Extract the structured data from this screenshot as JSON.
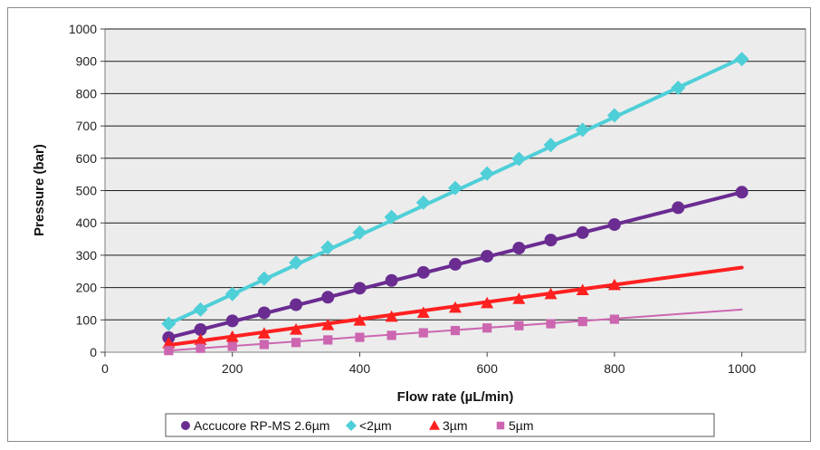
{
  "chart_data": {
    "type": "line",
    "title": "",
    "xlabel": "Flow rate (µL/min)",
    "ylabel": "Pressure (bar)",
    "xlim": [
      0,
      1100
    ],
    "ylim": [
      0,
      1000
    ],
    "xticks": [
      0,
      200,
      400,
      600,
      800,
      1000
    ],
    "yticks": [
      0,
      100,
      200,
      300,
      400,
      500,
      600,
      700,
      800,
      900,
      1000
    ],
    "grid": "horizontal",
    "plot_background": "#ececec",
    "legend_position": "bottom",
    "series": [
      {
        "name": "Accucore RP-MS 2.6µm",
        "color": "#6a2c91",
        "marker": "circle",
        "line_width": 4,
        "x": [
          100,
          150,
          200,
          250,
          300,
          350,
          400,
          450,
          500,
          550,
          600,
          650,
          700,
          750,
          800,
          900,
          1000
        ],
        "y": [
          45,
          70,
          97,
          122,
          147,
          170,
          198,
          222,
          247,
          272,
          297,
          322,
          347,
          370,
          395,
          447,
          495
        ],
        "fit_line": [
          [
            100,
            45
          ],
          [
            1000,
            495
          ]
        ]
      },
      {
        "name": "<2µm",
        "color": "#4fcfd8",
        "marker": "diamond",
        "line_width": 4,
        "x": [
          100,
          150,
          200,
          250,
          300,
          350,
          400,
          450,
          500,
          550,
          600,
          650,
          700,
          750,
          800,
          900,
          1000
        ],
        "y": [
          88,
          132,
          180,
          228,
          277,
          324,
          370,
          418,
          463,
          508,
          553,
          598,
          641,
          688,
          733,
          818,
          907
        ],
        "fit_line": [
          [
            100,
            88
          ],
          [
            1000,
            910
          ]
        ]
      },
      {
        "name": "3µm",
        "color": "#ff2020",
        "marker": "triangle",
        "line_width": 4,
        "x": [
          100,
          150,
          200,
          250,
          300,
          350,
          400,
          450,
          500,
          550,
          600,
          650,
          700,
          750,
          800
        ],
        "y": [
          28,
          38,
          48,
          58,
          70,
          84,
          98,
          110,
          122,
          138,
          152,
          165,
          180,
          192,
          208
        ],
        "fit_line": [
          [
            100,
            22
          ],
          [
            1000,
            262
          ]
        ]
      },
      {
        "name": "5µm",
        "color": "#cc66b0",
        "marker": "square",
        "line_width": 2,
        "x": [
          100,
          150,
          200,
          250,
          300,
          350,
          400,
          450,
          500,
          550,
          600,
          650,
          700,
          750,
          800
        ],
        "y": [
          5,
          12,
          18,
          24,
          30,
          38,
          46,
          52,
          60,
          67,
          75,
          82,
          88,
          95,
          102
        ],
        "fit_line": [
          [
            100,
            5
          ],
          [
            1000,
            132
          ]
        ]
      }
    ]
  }
}
